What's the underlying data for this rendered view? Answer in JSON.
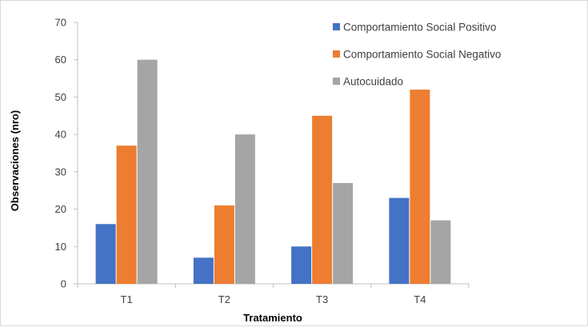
{
  "chart_data": {
    "type": "bar",
    "title": "",
    "xlabel": "Tratamiento",
    "ylabel": "Observaciones (nro)",
    "categories": [
      "T1",
      "T2",
      "T3",
      "T4"
    ],
    "series": [
      {
        "name": "Comportamiento Social Positivo",
        "values": [
          16,
          7,
          10,
          23
        ],
        "color": "#4472c4"
      },
      {
        "name": "Comportamiento Social Negativo",
        "values": [
          37,
          21,
          45,
          52
        ],
        "color": "#ed7d31"
      },
      {
        "name": "Autocuidado",
        "values": [
          60,
          40,
          27,
          17
        ],
        "color": "#a5a5a5"
      }
    ],
    "ylim": [
      0,
      70
    ],
    "yticks": [
      0,
      10,
      20,
      30,
      40,
      50,
      60,
      70
    ],
    "grid": false,
    "legend_position": "top-right"
  }
}
